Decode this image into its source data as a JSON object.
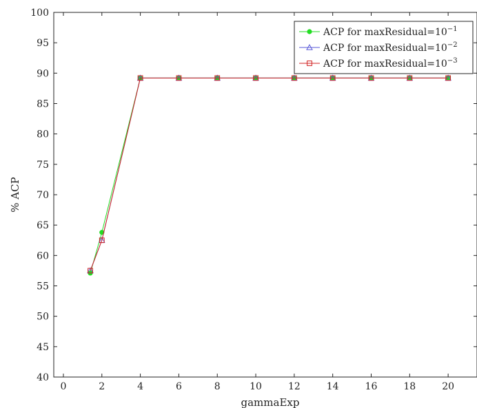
{
  "chart_data": {
    "type": "line",
    "title": "",
    "xlabel": "gammaExp",
    "ylabel": "% ACP",
    "xlim": [
      -0.5,
      21.5
    ],
    "ylim": [
      40,
      100
    ],
    "xticks": [
      0,
      2,
      4,
      6,
      8,
      10,
      12,
      14,
      16,
      18,
      20
    ],
    "yticks": [
      40,
      45,
      50,
      55,
      60,
      65,
      70,
      75,
      80,
      85,
      90,
      95,
      100
    ],
    "grid": false,
    "legend_position": "top-right",
    "series": [
      {
        "name": "ACP for maxResidual=10",
        "exponent": "−1",
        "color": "#22dd22",
        "marker": "circle",
        "x": [
          1.4,
          2,
          4,
          6,
          8,
          10,
          12,
          14,
          16,
          18,
          20
        ],
        "y": [
          57.1,
          63.8,
          89.2,
          89.2,
          89.2,
          89.2,
          89.2,
          89.2,
          89.2,
          89.2,
          89.2
        ]
      },
      {
        "name": "ACP for maxResidual=10",
        "exponent": "−2",
        "color": "#5a5ad8",
        "marker": "triangle",
        "x": [
          1.4,
          2,
          4,
          6,
          8,
          10,
          12,
          14,
          16,
          18,
          20
        ],
        "y": [
          57.5,
          62.5,
          89.2,
          89.2,
          89.2,
          89.2,
          89.2,
          89.2,
          89.2,
          89.2,
          89.2
        ]
      },
      {
        "name": "ACP for maxResidual=10",
        "exponent": "−3",
        "color": "#d02020",
        "marker": "square",
        "x": [
          1.4,
          2,
          4,
          6,
          8,
          10,
          12,
          14,
          16,
          18,
          20
        ],
        "y": [
          57.5,
          62.5,
          89.2,
          89.2,
          89.2,
          89.2,
          89.2,
          89.2,
          89.2,
          89.2,
          89.2
        ]
      }
    ]
  }
}
